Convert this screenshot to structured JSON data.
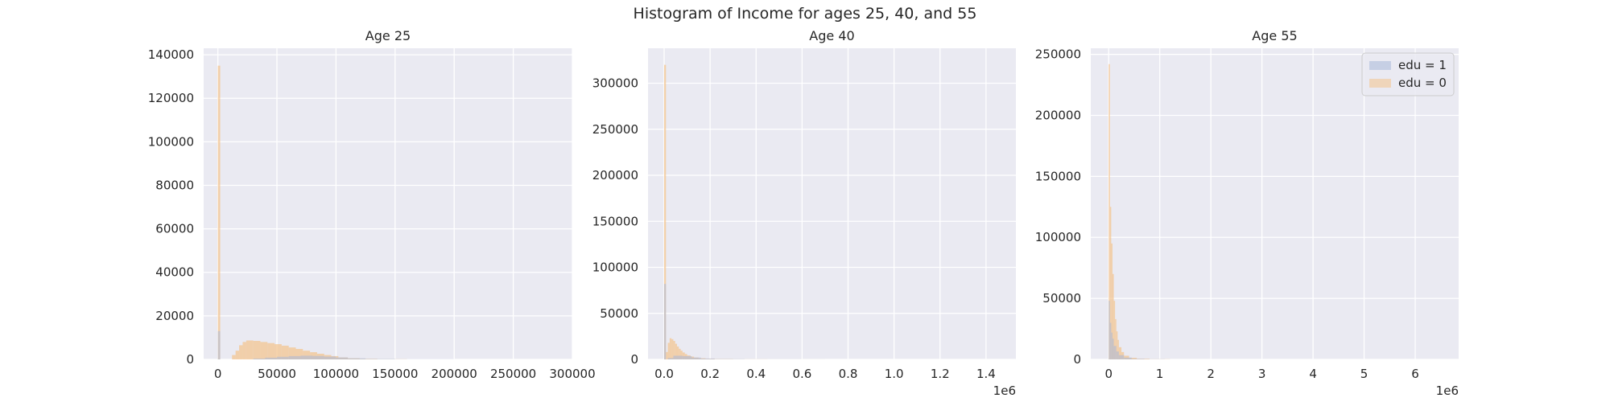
{
  "figure": {
    "title": "Histogram of Income for ages 25, 40, and 55"
  },
  "colors": {
    "background": "#eaeaf2",
    "grid": "#ffffff",
    "edu1": "#a8b8d8",
    "edu0": "#f3c38c"
  },
  "legend": {
    "placement": "upper right",
    "entries": [
      "edu = 1",
      "edu = 0"
    ]
  },
  "chart_data": [
    {
      "type": "histogram",
      "title": "Age 25",
      "offset_text": "",
      "xlim": [
        -12000,
        300000
      ],
      "ylim": [
        0,
        143000
      ],
      "xticks": [
        0,
        50000,
        100000,
        150000,
        200000,
        250000,
        300000
      ],
      "xtick_labels": [
        "0",
        "50000",
        "100000",
        "150000",
        "200000",
        "250000",
        "300000"
      ],
      "yticks": [
        0,
        20000,
        40000,
        60000,
        80000,
        100000,
        120000,
        140000
      ],
      "ytick_labels": [
        "0",
        "20000",
        "40000",
        "60000",
        "80000",
        "100000",
        "120000",
        "140000"
      ],
      "series": [
        {
          "name": "edu = 0",
          "color": "#f3c38c",
          "bins": [
            [
              0,
              2000,
              135000
            ],
            [
              12000,
              15000,
              2000
            ],
            [
              15000,
              18000,
              4000
            ],
            [
              18000,
              21000,
              6500
            ],
            [
              21000,
              24000,
              8000
            ],
            [
              24000,
              30000,
              8700
            ],
            [
              30000,
              36000,
              8500
            ],
            [
              36000,
              42000,
              8000
            ],
            [
              42000,
              48000,
              7500
            ],
            [
              48000,
              54000,
              7000
            ],
            [
              54000,
              60000,
              6300
            ],
            [
              60000,
              66000,
              5500
            ],
            [
              66000,
              72000,
              4800
            ],
            [
              72000,
              78000,
              4000
            ],
            [
              78000,
              84000,
              3300
            ],
            [
              84000,
              90000,
              2600
            ],
            [
              90000,
              96000,
              2000
            ],
            [
              96000,
              102000,
              1500
            ],
            [
              102000,
              110000,
              900
            ],
            [
              110000,
              120000,
              500
            ],
            [
              120000,
              135000,
              250
            ],
            [
              135000,
              160000,
              80
            ]
          ]
        },
        {
          "name": "edu = 1",
          "color": "#a8b8d8",
          "bins": [
            [
              0,
              2000,
              13000
            ],
            [
              30000,
              40000,
              400
            ],
            [
              40000,
              50000,
              800
            ],
            [
              50000,
              60000,
              1200
            ],
            [
              60000,
              70000,
              1500
            ],
            [
              70000,
              80000,
              1700
            ],
            [
              80000,
              90000,
              1600
            ],
            [
              90000,
              100000,
              1300
            ],
            [
              100000,
              110000,
              900
            ],
            [
              110000,
              125000,
              500
            ],
            [
              125000,
              150000,
              200
            ],
            [
              150000,
              200000,
              50
            ]
          ]
        }
      ]
    },
    {
      "type": "histogram",
      "title": "Age 40",
      "offset_text": "1e6",
      "xlim": [
        -70000,
        1530000
      ],
      "ylim": [
        0,
        338000
      ],
      "xticks": [
        0,
        200000,
        400000,
        600000,
        800000,
        1000000,
        1200000,
        1400000
      ],
      "xtick_labels": [
        "0.0",
        "0.2",
        "0.4",
        "0.6",
        "0.8",
        "1.0",
        "1.2",
        "1.4"
      ],
      "yticks": [
        0,
        50000,
        100000,
        150000,
        200000,
        250000,
        300000
      ],
      "ytick_labels": [
        "0",
        "50000",
        "100000",
        "150000",
        "200000",
        "250000",
        "300000"
      ],
      "series": [
        {
          "name": "edu = 0",
          "color": "#f3c38c",
          "bins": [
            [
              0,
              8000,
              320000
            ],
            [
              8000,
              16000,
              8000
            ],
            [
              16000,
              24000,
              18000
            ],
            [
              24000,
              32000,
              23000
            ],
            [
              32000,
              40000,
              22000
            ],
            [
              40000,
              48000,
              20000
            ],
            [
              48000,
              56000,
              17000
            ],
            [
              56000,
              64000,
              14000
            ],
            [
              64000,
              72000,
              11500
            ],
            [
              72000,
              80000,
              9500
            ],
            [
              80000,
              90000,
              7500
            ],
            [
              90000,
              100000,
              5800
            ],
            [
              100000,
              115000,
              4300
            ],
            [
              115000,
              130000,
              3000
            ],
            [
              130000,
              150000,
              2000
            ],
            [
              150000,
              180000,
              1200
            ],
            [
              180000,
              220000,
              700
            ],
            [
              220000,
              300000,
              350
            ],
            [
              300000,
              450000,
              120
            ],
            [
              450000,
              700000,
              40
            ]
          ]
        },
        {
          "name": "edu = 1",
          "color": "#a8b8d8",
          "bins": [
            [
              0,
              8000,
              82000
            ],
            [
              16000,
              40000,
              1500
            ],
            [
              40000,
              80000,
              4000
            ],
            [
              80000,
              120000,
              3500
            ],
            [
              120000,
              160000,
              2000
            ],
            [
              160000,
              220000,
              900
            ],
            [
              220000,
              350000,
              300
            ],
            [
              350000,
              600000,
              80
            ]
          ]
        }
      ]
    },
    {
      "type": "histogram",
      "title": "Age 55",
      "offset_text": "1e6",
      "xlim": [
        -350000,
        6850000
      ],
      "ylim": [
        0,
        255000
      ],
      "xticks": [
        0,
        1000000,
        2000000,
        3000000,
        4000000,
        5000000,
        6000000
      ],
      "xtick_labels": [
        "0",
        "1",
        "2",
        "3",
        "4",
        "5",
        "6"
      ],
      "yticks": [
        0,
        50000,
        100000,
        150000,
        200000,
        250000
      ],
      "ytick_labels": [
        "0",
        "50000",
        "100000",
        "150000",
        "200000",
        "250000"
      ],
      "series": [
        {
          "name": "edu = 0",
          "color": "#f3c38c",
          "bins": [
            [
              0,
              25000,
              242000
            ],
            [
              25000,
              50000,
              125000
            ],
            [
              50000,
              75000,
              95000
            ],
            [
              75000,
              100000,
              70000
            ],
            [
              100000,
              125000,
              48000
            ],
            [
              125000,
              150000,
              33000
            ],
            [
              150000,
              175000,
              23000
            ],
            [
              175000,
              200000,
              16000
            ],
            [
              200000,
              250000,
              10000
            ],
            [
              250000,
              300000,
              6000
            ],
            [
              300000,
              400000,
              3000
            ],
            [
              400000,
              550000,
              1300
            ],
            [
              550000,
              800000,
              500
            ],
            [
              800000,
              1200000,
              150
            ]
          ]
        },
        {
          "name": "edu = 1",
          "color": "#a8b8d8",
          "bins": [
            [
              0,
              25000,
              48000
            ],
            [
              25000,
              50000,
              30000
            ],
            [
              50000,
              75000,
              22000
            ],
            [
              75000,
              100000,
              17000
            ],
            [
              100000,
              150000,
              11000
            ],
            [
              150000,
              200000,
              6500
            ],
            [
              200000,
              300000,
              3500
            ],
            [
              300000,
              450000,
              1500
            ],
            [
              450000,
              700000,
              500
            ],
            [
              700000,
              1100000,
              150
            ]
          ]
        }
      ]
    }
  ]
}
